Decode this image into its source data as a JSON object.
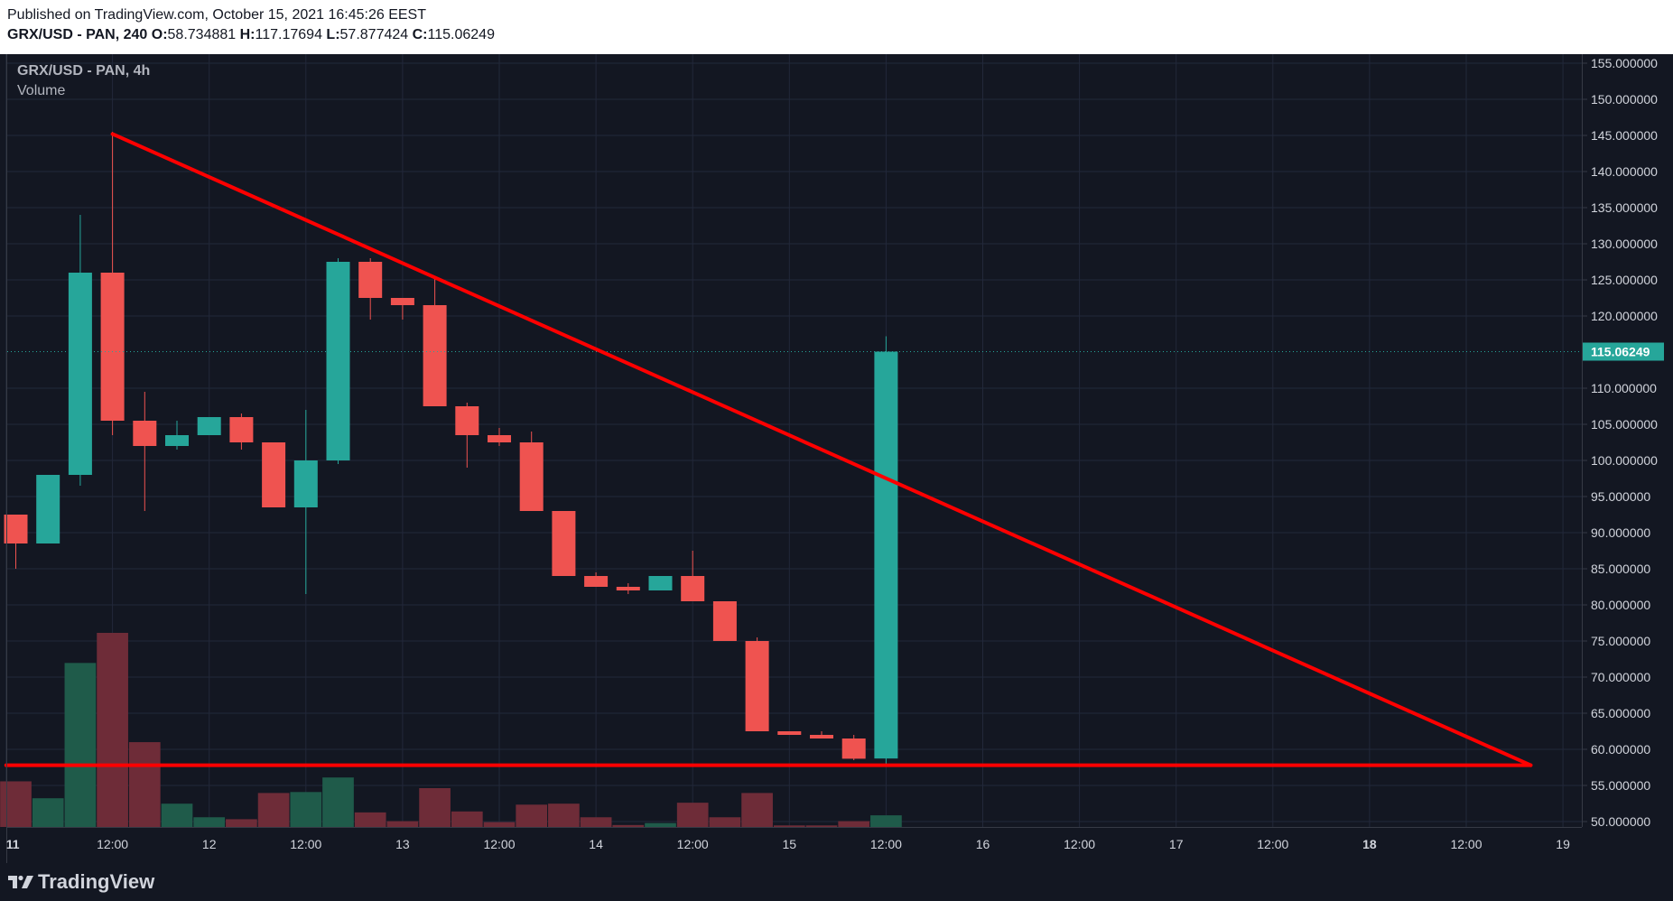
{
  "header": {
    "published": "Published on TradingView.com, October 15, 2021 16:45:26 EEST",
    "symbol_line": "GRX/USD - PAN, 240",
    "o_label": "O:",
    "o_value": "58.734881",
    "h_label": "H:",
    "h_value": "117.17694",
    "l_label": "L:",
    "l_value": "57.877424",
    "c_label": "C:",
    "c_value": "115.06249"
  },
  "legend": {
    "symbol": "GRX/USD - PAN, 4h",
    "volume_label": "Volume"
  },
  "footer": {
    "brand": "TradingView",
    "logo_icon": "tradingview-logo-icon"
  },
  "colors": {
    "background": "#131722",
    "up": "#26a69a",
    "down": "#ef5350",
    "volume_up": "#1f5b4a",
    "volume_down": "#6e2c38",
    "trendline": "#ff0000",
    "grid": "#22283a",
    "last_price_bg": "#26a69a"
  },
  "chart_data": {
    "type": "candlestick",
    "title": "GRX/USD - PAN, 4h",
    "ylim": [
      50,
      155
    ],
    "y_ticks": [
      "155.000000",
      "150.000000",
      "145.000000",
      "140.000000",
      "135.000000",
      "130.000000",
      "125.000000",
      "120.000000",
      "110.000000",
      "105.000000",
      "100.000000",
      "95.000000",
      "90.000000",
      "85.000000",
      "80.000000",
      "75.000000",
      "70.000000",
      "65.000000",
      "60.000000",
      "55.000000",
      "50.000000"
    ],
    "last_price_label": "115.06249",
    "last_price": 115.06249,
    "x_ticks": [
      {
        "label": "11",
        "slot": -0.3,
        "bold": true
      },
      {
        "label": "12:00",
        "slot": 3
      },
      {
        "label": "12",
        "slot": 6
      },
      {
        "label": "12:00",
        "slot": 9
      },
      {
        "label": "13",
        "slot": 12
      },
      {
        "label": "12:00",
        "slot": 15
      },
      {
        "label": "14",
        "slot": 18
      },
      {
        "label": "12:00",
        "slot": 21
      },
      {
        "label": "15",
        "slot": 24
      },
      {
        "label": "12:00",
        "slot": 27
      },
      {
        "label": "16",
        "slot": 30
      },
      {
        "label": "12:00",
        "slot": 33
      },
      {
        "label": "17",
        "slot": 36
      },
      {
        "label": "12:00",
        "slot": 39
      },
      {
        "label": "18",
        "slot": 42,
        "bold": true
      },
      {
        "label": "12:00",
        "slot": 45
      },
      {
        "label": "19",
        "slot": 48
      }
    ],
    "candles": [
      {
        "o": 92.5,
        "h": 92.5,
        "l": 85.0,
        "c": 88.5
      },
      {
        "o": 88.5,
        "h": 98.0,
        "l": 88.5,
        "c": 98.0
      },
      {
        "o": 98.0,
        "h": 134.0,
        "l": 96.5,
        "c": 126.0
      },
      {
        "o": 126.0,
        "h": 145.5,
        "l": 103.5,
        "c": 105.5
      },
      {
        "o": 105.5,
        "h": 109.5,
        "l": 93.0,
        "c": 102.0
      },
      {
        "o": 102.0,
        "h": 105.5,
        "l": 101.5,
        "c": 103.5
      },
      {
        "o": 103.5,
        "h": 106.0,
        "l": 103.5,
        "c": 106.0
      },
      {
        "o": 106.0,
        "h": 106.5,
        "l": 101.5,
        "c": 102.5
      },
      {
        "o": 102.5,
        "h": 102.5,
        "l": 93.5,
        "c": 93.5
      },
      {
        "o": 93.5,
        "h": 107.0,
        "l": 81.5,
        "c": 100.0
      },
      {
        "o": 100.0,
        "h": 128.0,
        "l": 99.5,
        "c": 127.5
      },
      {
        "o": 127.5,
        "h": 128.0,
        "l": 119.5,
        "c": 122.5
      },
      {
        "o": 122.5,
        "h": 122.5,
        "l": 119.5,
        "c": 121.5
      },
      {
        "o": 121.5,
        "h": 125.5,
        "l": 107.5,
        "c": 107.5
      },
      {
        "o": 107.5,
        "h": 108.0,
        "l": 99.0,
        "c": 103.5
      },
      {
        "o": 103.5,
        "h": 104.5,
        "l": 102.0,
        "c": 102.5
      },
      {
        "o": 102.5,
        "h": 104.0,
        "l": 93.0,
        "c": 93.0
      },
      {
        "o": 93.0,
        "h": 93.0,
        "l": 84.0,
        "c": 84.0
      },
      {
        "o": 84.0,
        "h": 84.5,
        "l": 82.5,
        "c": 82.5
      },
      {
        "o": 82.5,
        "h": 83.0,
        "l": 81.5,
        "c": 82.0
      },
      {
        "o": 82.0,
        "h": 84.0,
        "l": 82.0,
        "c": 84.0
      },
      {
        "o": 84.0,
        "h": 87.5,
        "l": 80.5,
        "c": 80.5
      },
      {
        "o": 80.5,
        "h": 80.5,
        "l": 75.0,
        "c": 75.0
      },
      {
        "o": 75.0,
        "h": 75.5,
        "l": 62.5,
        "c": 62.5
      },
      {
        "o": 62.5,
        "h": 62.5,
        "l": 62.0,
        "c": 62.0
      },
      {
        "o": 62.0,
        "h": 62.5,
        "l": 61.5,
        "c": 61.5
      },
      {
        "o": 61.5,
        "h": 62.0,
        "l": 58.5,
        "c": 58.7
      },
      {
        "o": 58.73,
        "h": 117.18,
        "l": 57.88,
        "c": 115.06
      }
    ],
    "volumes": [
      {
        "v": 0.235,
        "up": false
      },
      {
        "v": 0.148,
        "up": true
      },
      {
        "v": 0.845,
        "up": true
      },
      {
        "v": 1.0,
        "up": false
      },
      {
        "v": 0.437,
        "up": false
      },
      {
        "v": 0.12,
        "up": true
      },
      {
        "v": 0.05,
        "up": true
      },
      {
        "v": 0.04,
        "up": false
      },
      {
        "v": 0.175,
        "up": false
      },
      {
        "v": 0.18,
        "up": true
      },
      {
        "v": 0.255,
        "up": true
      },
      {
        "v": 0.075,
        "up": false
      },
      {
        "v": 0.03,
        "up": false
      },
      {
        "v": 0.2,
        "up": false
      },
      {
        "v": 0.08,
        "up": false
      },
      {
        "v": 0.025,
        "up": false
      },
      {
        "v": 0.115,
        "up": false
      },
      {
        "v": 0.12,
        "up": false
      },
      {
        "v": 0.05,
        "up": false
      },
      {
        "v": 0.01,
        "up": false
      },
      {
        "v": 0.02,
        "up": true
      },
      {
        "v": 0.125,
        "up": false
      },
      {
        "v": 0.05,
        "up": false
      },
      {
        "v": 0.175,
        "up": false
      },
      {
        "v": 0.008,
        "up": false
      },
      {
        "v": 0.008,
        "up": false
      },
      {
        "v": 0.03,
        "up": false
      },
      {
        "v": 0.06,
        "up": true
      }
    ],
    "trendlines": [
      {
        "name": "descending-resistance",
        "from": {
          "slot": 3,
          "price": 145.2
        },
        "to": {
          "slot": 47,
          "price": 57.8
        }
      },
      {
        "name": "horizontal-support",
        "from": {
          "slot": -0.3,
          "price": 57.8
        },
        "to": {
          "slot": 47,
          "price": 57.8
        }
      }
    ]
  }
}
